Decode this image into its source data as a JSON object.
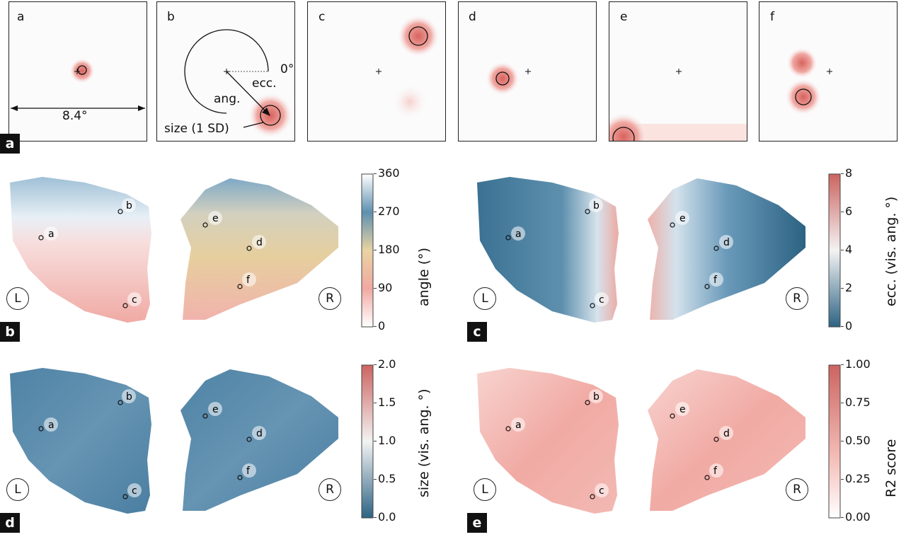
{
  "receptive_fields": {
    "label": "a",
    "panels": [
      "a",
      "b",
      "c",
      "d",
      "e",
      "f"
    ],
    "scale_label": "8.4°",
    "zero_label": "0°",
    "ecc_label": "ecc.",
    "ang_label": "ang.",
    "size_label": "size (1 SD)"
  },
  "maps": [
    {
      "label": "b",
      "cb_title": "angle (°)",
      "ticks": [
        "360",
        "270",
        "180",
        "90",
        "0"
      ],
      "left_hemi": "L",
      "right_hemi": "R"
    },
    {
      "label": "c",
      "cb_title": "ecc.  (vis. ang. °)",
      "ticks": [
        "8",
        "6",
        "4",
        "2",
        "0"
      ],
      "left_hemi": "L",
      "right_hemi": "R"
    },
    {
      "label": "d",
      "cb_title": "size (vis. ang. °)",
      "ticks": [
        "2.0",
        "1.5",
        "1.0",
        "0.5",
        "0.0"
      ],
      "left_hemi": "L",
      "right_hemi": "R"
    },
    {
      "label": "e",
      "cb_title": "R2 score",
      "ticks": [
        "1.00",
        "0.75",
        "0.50",
        "0.25",
        "0.00"
      ],
      "left_hemi": "L",
      "right_hemi": "R"
    }
  ],
  "markers": [
    "a",
    "b",
    "c",
    "d",
    "e",
    "f"
  ],
  "colors": {
    "blue_dark": "#2f6688",
    "blue": "#5b91b0",
    "blue_light": "#a9c8da",
    "pink": "#f1b3ac",
    "red": "#d46a66",
    "sand": "#e7d0a2"
  }
}
